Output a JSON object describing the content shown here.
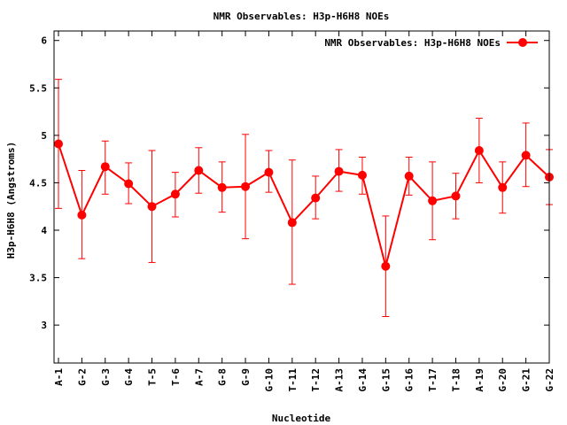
{
  "chart_data": {
    "type": "line",
    "title": "NMR Observables: H3p-H6H8 NOEs",
    "xlabel": "Nucleotide",
    "ylabel": "H3p-H6H8 (Angstroms)",
    "ylim": [
      2.6,
      6.1
    ],
    "yticks": [
      "3",
      "3.5",
      "4",
      "4.5",
      "5",
      "5.5",
      "6"
    ],
    "grid": false,
    "legend_position": "top-right",
    "categories": [
      "A-1",
      "G-2",
      "G-3",
      "G-4",
      "T-5",
      "T-6",
      "A-7",
      "G-8",
      "G-9",
      "G-10",
      "T-11",
      "T-12",
      "A-13",
      "G-14",
      "G-15",
      "G-16",
      "T-17",
      "T-18",
      "A-19",
      "G-20",
      "G-21",
      "G-22"
    ],
    "series": [
      {
        "name": "NMR Observables: H3p-H6H8 NOEs",
        "color": "#ff0000",
        "values": [
          4.91,
          4.16,
          4.67,
          4.49,
          4.25,
          4.38,
          4.63,
          4.45,
          4.46,
          4.61,
          4.08,
          4.34,
          4.62,
          4.58,
          3.62,
          4.57,
          4.31,
          4.36,
          4.84,
          4.45,
          4.79,
          4.56
        ],
        "error_low": [
          4.23,
          3.7,
          4.38,
          4.28,
          3.66,
          4.14,
          4.39,
          4.19,
          3.91,
          4.4,
          3.43,
          4.12,
          4.41,
          4.38,
          3.09,
          4.37,
          3.9,
          4.12,
          4.5,
          4.18,
          4.46,
          4.27
        ],
        "error_high": [
          5.59,
          4.63,
          4.94,
          4.71,
          4.84,
          4.61,
          4.87,
          4.72,
          5.01,
          4.84,
          4.74,
          4.57,
          4.85,
          4.77,
          4.15,
          4.77,
          4.72,
          4.6,
          5.18,
          4.72,
          5.13,
          4.85
        ]
      }
    ]
  }
}
